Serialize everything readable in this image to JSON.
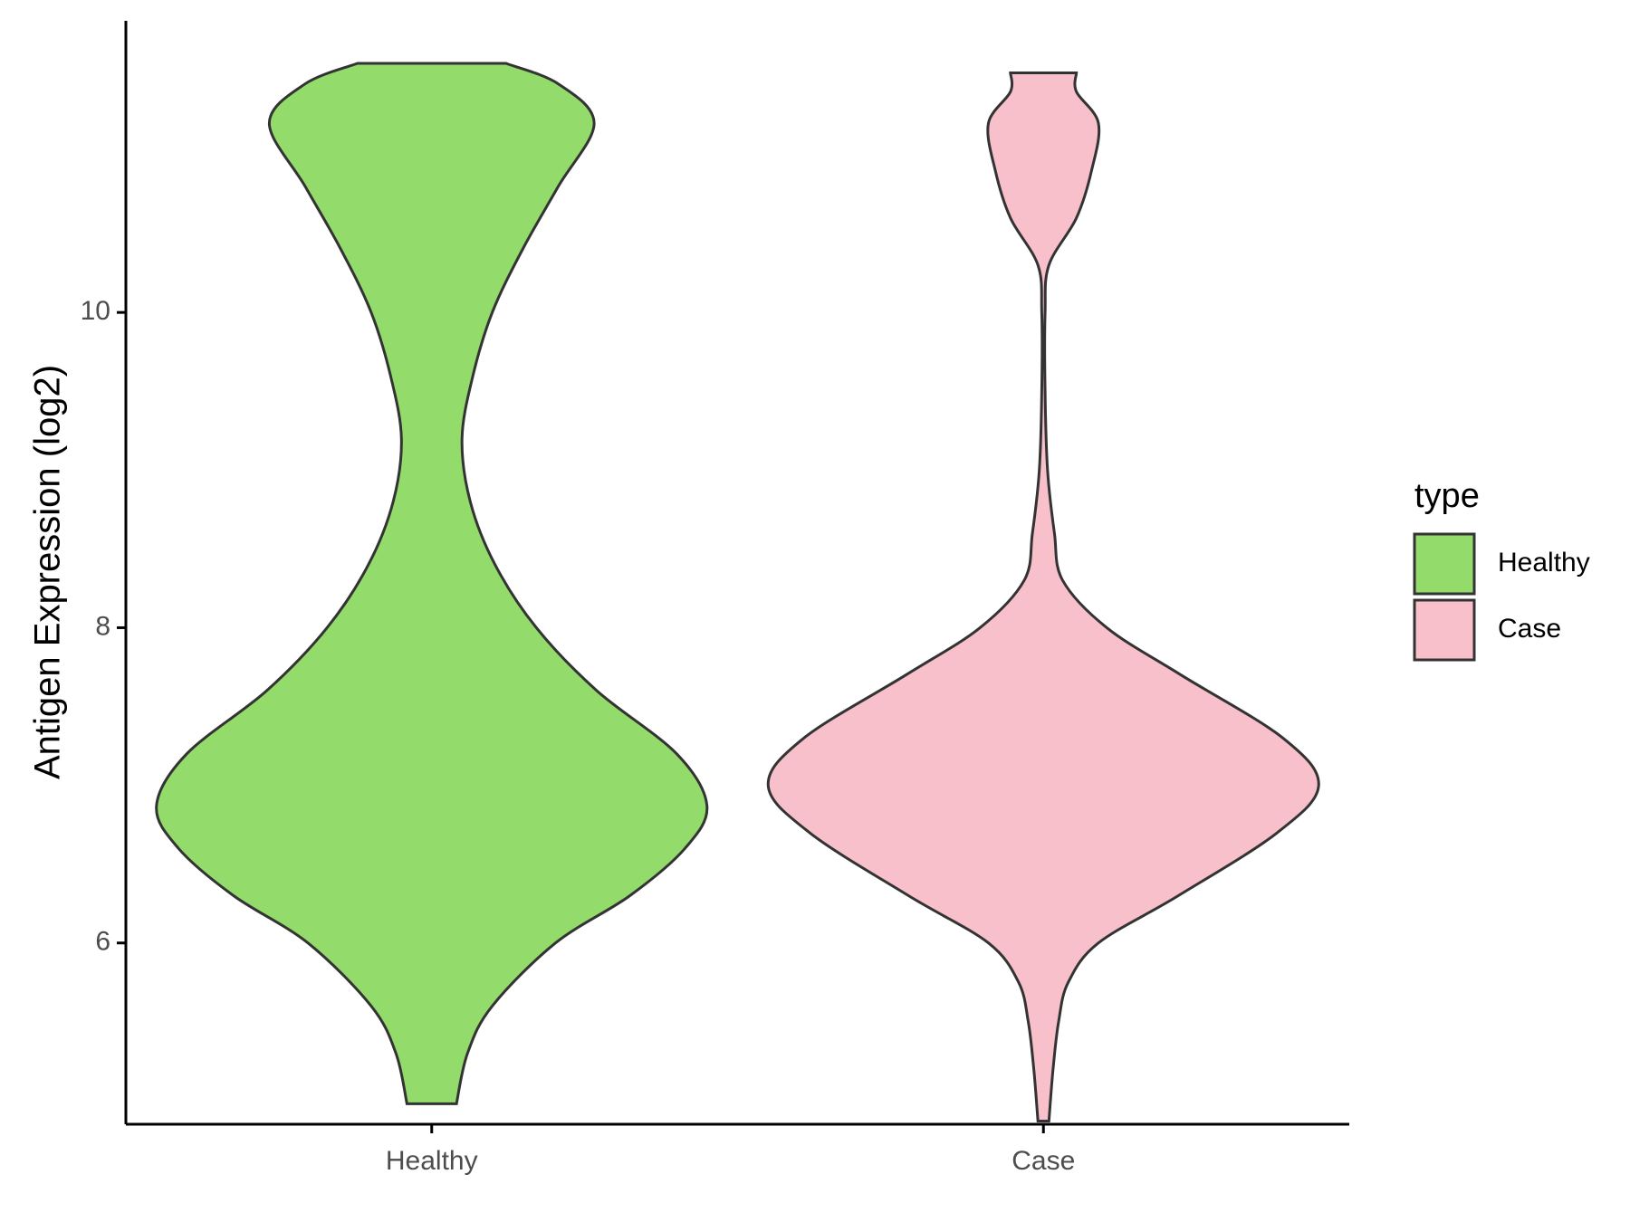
{
  "chart_data": {
    "type": "violin",
    "ylabel": "Antigen Expression (log2)",
    "xlabel": "",
    "categories": [
      "Healthy",
      "Case"
    ],
    "y_ticks": [
      6,
      8,
      10
    ],
    "y_tick_labels": [
      "6",
      "8",
      "10"
    ],
    "ylim": [
      4.85,
      11.85
    ],
    "grid": false,
    "legend": {
      "title": "type",
      "position": "right",
      "entries": [
        {
          "label": "Healthy",
          "color": "#93DC6B"
        },
        {
          "label": "Case",
          "color": "#F8C0CB"
        }
      ]
    },
    "series": [
      {
        "name": "Healthy",
        "color": "#93DC6B",
        "min": 4.98,
        "max": 11.58,
        "density_profile": [
          [
            4.98,
            0.09
          ],
          [
            5.3,
            0.13
          ],
          [
            5.6,
            0.22
          ],
          [
            6.0,
            0.45
          ],
          [
            6.3,
            0.72
          ],
          [
            6.6,
            0.92
          ],
          [
            6.87,
            1.0
          ],
          [
            7.2,
            0.89
          ],
          [
            7.6,
            0.6
          ],
          [
            8.0,
            0.38
          ],
          [
            8.4,
            0.23
          ],
          [
            8.8,
            0.14
          ],
          [
            9.2,
            0.11
          ],
          [
            9.6,
            0.15
          ],
          [
            10.0,
            0.22
          ],
          [
            10.4,
            0.33
          ],
          [
            10.8,
            0.46
          ],
          [
            11.2,
            0.59
          ],
          [
            11.45,
            0.46
          ],
          [
            11.58,
            0.27
          ]
        ]
      },
      {
        "name": "Case",
        "color": "#F8C0CB",
        "min": 4.87,
        "max": 11.52,
        "density_profile": [
          [
            4.87,
            0.02
          ],
          [
            5.2,
            0.035
          ],
          [
            5.5,
            0.055
          ],
          [
            5.75,
            0.09
          ],
          [
            6.0,
            0.2
          ],
          [
            6.3,
            0.49
          ],
          [
            6.7,
            0.85
          ],
          [
            7.0,
            1.0
          ],
          [
            7.3,
            0.87
          ],
          [
            7.7,
            0.5
          ],
          [
            8.0,
            0.23
          ],
          [
            8.3,
            0.07
          ],
          [
            8.6,
            0.04
          ],
          [
            9.0,
            0.015
          ],
          [
            9.5,
            0.006
          ],
          [
            10.0,
            0.006
          ],
          [
            10.3,
            0.02
          ],
          [
            10.6,
            0.12
          ],
          [
            10.9,
            0.175
          ],
          [
            11.2,
            0.2
          ],
          [
            11.4,
            0.12
          ],
          [
            11.52,
            0.12
          ]
        ]
      }
    ]
  }
}
